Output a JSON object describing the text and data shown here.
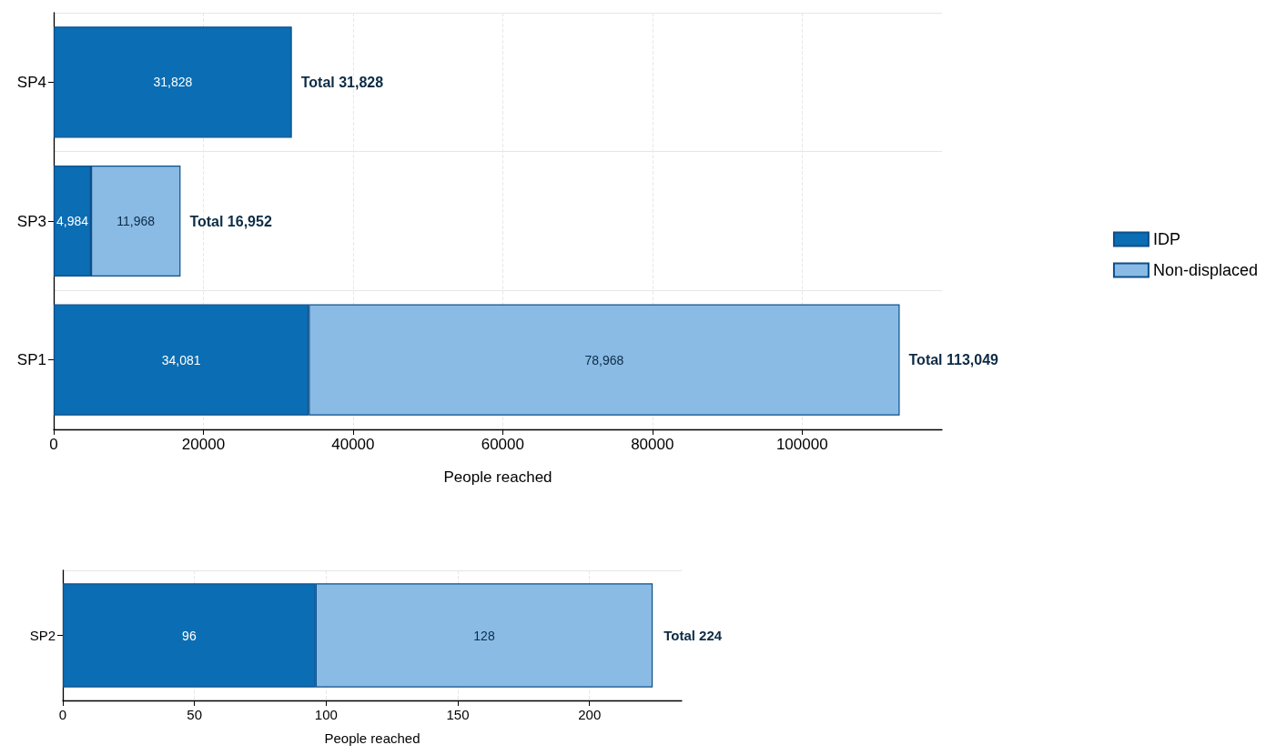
{
  "chart_data": [
    {
      "type": "bar",
      "orientation": "horizontal",
      "stacked": true,
      "categories": [
        "SP4",
        "SP3",
        "SP1"
      ],
      "xlabel": "People reached",
      "xlim": [
        0,
        118700
      ],
      "xticks": [
        0,
        20000,
        40000,
        60000,
        80000,
        100000
      ],
      "grid": true,
      "legend": "right",
      "series": [
        {
          "name": "IDP",
          "color": "#0b6db3",
          "values": [
            31828,
            4984,
            34081
          ],
          "value_labels": [
            "31,828",
            "4,984",
            "34,081"
          ]
        },
        {
          "name": "Non-displaced",
          "color": "#89bbe5",
          "values": [
            null,
            11968,
            78968
          ],
          "value_labels": [
            null,
            "11,968",
            "78,968"
          ]
        }
      ],
      "totals": [
        "Total 31,828",
        "Total 16,952",
        "Total 113,049"
      ]
    },
    {
      "type": "bar",
      "orientation": "horizontal",
      "stacked": true,
      "categories": [
        "SP2"
      ],
      "xlabel": "People reached",
      "xlim": [
        0,
        235
      ],
      "xticks": [
        0,
        50,
        100,
        150,
        200
      ],
      "grid": true,
      "series": [
        {
          "color": "#0b6db3",
          "values": [
            96
          ],
          "value_labels": [
            "96"
          ]
        },
        {
          "color": "#89bbe5",
          "values": [
            128
          ],
          "value_labels": [
            "128"
          ]
        }
      ],
      "totals": [
        "Total 224"
      ]
    }
  ]
}
